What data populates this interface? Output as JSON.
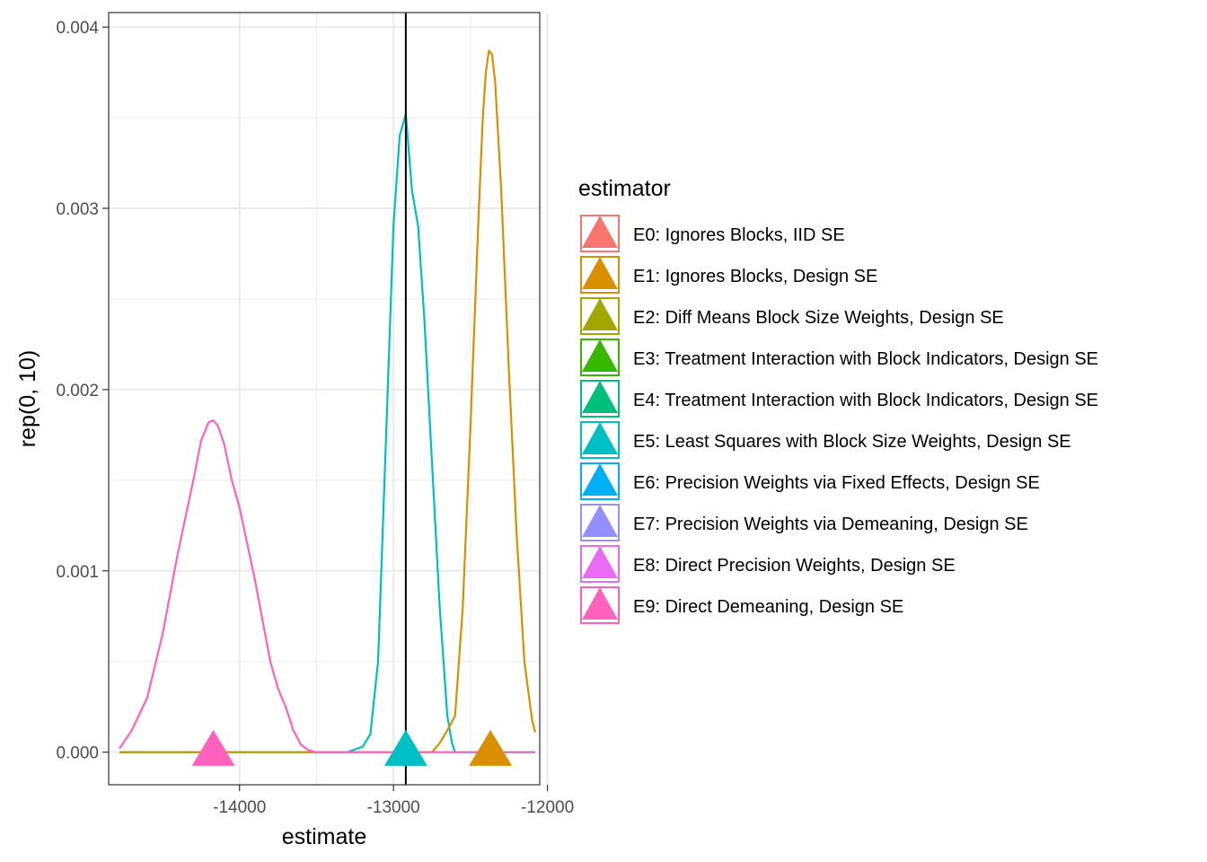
{
  "chart_data": {
    "type": "line",
    "xlabel": "estimate",
    "ylabel": "rep(0, 10)",
    "xlim": [
      -14850,
      -12050
    ],
    "ylim": [
      -0.00018,
      0.00408
    ],
    "x_ticks": [
      -14000,
      -13000,
      -12000
    ],
    "x_tick_labels": [
      "-14000",
      "-13000",
      "-12000"
    ],
    "y_ticks": [
      0.0,
      0.001,
      0.002,
      0.003,
      0.004
    ],
    "y_tick_labels": [
      "0.000",
      "0.001",
      "0.002",
      "0.003",
      "0.004"
    ],
    "grid": true,
    "vline_x": -12920,
    "legend": {
      "title": "estimator",
      "position": "right",
      "entries": [
        {
          "label": "E0: Ignores Blocks, IID SE",
          "color": "#F8766D"
        },
        {
          "label": "E1: Ignores Blocks, Design SE",
          "color": "#D89000"
        },
        {
          "label": "E2: Diff Means Block Size Weights, Design SE",
          "color": "#A3A500"
        },
        {
          "label": "E3: Treatment Interaction with Block Indicators, Design SE",
          "color": "#39B600"
        },
        {
          "label": "E4: Treatment Interaction with Block Indicators, Design SE",
          "color": "#00BF7D"
        },
        {
          "label": "E5: Least Squares with Block Size Weights, Design SE",
          "color": "#00BFC4"
        },
        {
          "label": "E6: Precision Weights via Fixed Effects, Design SE",
          "color": "#00B0F6"
        },
        {
          "label": "E7: Precision Weights via Demeaning, Design SE",
          "color": "#9590FF"
        },
        {
          "label": "E8: Direct Precision Weights, Design SE",
          "color": "#E76BF3"
        },
        {
          "label": "E9: Direct Demeaning, Design SE",
          "color": "#FF62BC"
        }
      ]
    },
    "series": [
      {
        "color": "#00BFC4",
        "x": [
          -14780,
          -13400,
          -13300,
          -13200,
          -13150,
          -13100,
          -13050,
          -13000,
          -12960,
          -12920,
          -12880,
          -12840,
          -12800,
          -12750,
          -12700,
          -12650,
          -12620,
          -12600,
          -12080
        ],
        "y": [
          0.0,
          0.0,
          0.0,
          3e-05,
          0.0001,
          0.0005,
          0.0017,
          0.0029,
          0.0034,
          0.00352,
          0.0031,
          0.0029,
          0.0024,
          0.0016,
          0.0008,
          0.0002,
          5e-05,
          0.0,
          0.0
        ]
      },
      {
        "color": "#D89000",
        "x": [
          -14780,
          -12750,
          -12700,
          -12650,
          -12600,
          -12550,
          -12500,
          -12450,
          -12420,
          -12400,
          -12380,
          -12360,
          -12340,
          -12300,
          -12250,
          -12200,
          -12150,
          -12100,
          -12080
        ],
        "y": [
          0.0,
          0.0,
          5e-05,
          0.00012,
          0.0002,
          0.0008,
          0.0018,
          0.0029,
          0.0035,
          0.00375,
          0.00387,
          0.00385,
          0.0037,
          0.0031,
          0.0021,
          0.0012,
          0.0005,
          0.00018,
          0.00011
        ]
      },
      {
        "color": "#FF62BC",
        "x": [
          -14780,
          -14700,
          -14600,
          -14500,
          -14400,
          -14300,
          -14250,
          -14200,
          -14170,
          -14140,
          -14100,
          -14050,
          -14000,
          -13900,
          -13800,
          -13750,
          -13700,
          -13650,
          -13600,
          -13550,
          -13500,
          -13400,
          -12080
        ],
        "y": [
          2e-05,
          0.00012,
          0.0003,
          0.00065,
          0.0011,
          0.0015,
          0.00172,
          0.00182,
          0.00183,
          0.0018,
          0.0017,
          0.0015,
          0.00135,
          0.00095,
          0.0005,
          0.00035,
          0.00025,
          0.00012,
          4e-05,
          1e-05,
          0.0,
          0.0,
          0.0
        ]
      }
    ],
    "points": [
      {
        "x": -14170,
        "y": 0.0,
        "color": "#FF62BC"
      },
      {
        "x": -12920,
        "y": 0.0,
        "color": "#00BFC4"
      },
      {
        "x": -12370,
        "y": 0.0,
        "color": "#D89000"
      }
    ]
  }
}
